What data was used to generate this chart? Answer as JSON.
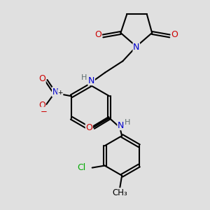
{
  "bg_color": "#e0e0e0",
  "bond_color": "#000000",
  "bond_width": 1.5,
  "atom_colors": {
    "N": "#0000cc",
    "O": "#cc0000",
    "Cl": "#00aa00",
    "H": "#607070",
    "C": "#000000"
  },
  "font_size": 8.5,
  "figsize": [
    3.0,
    3.0
  ],
  "dpi": 100,
  "xlim": [
    0,
    10
  ],
  "ylim": [
    0,
    10
  ]
}
